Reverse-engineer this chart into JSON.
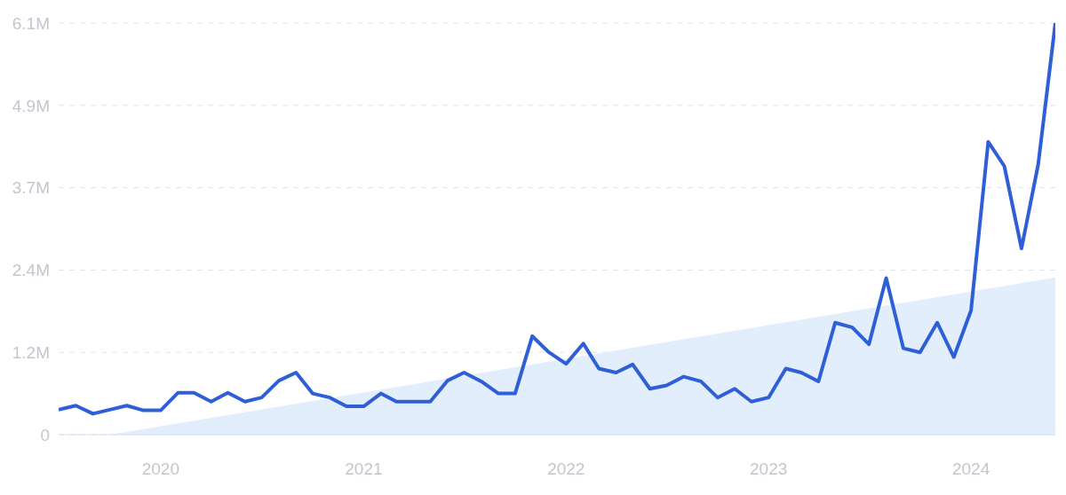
{
  "chart_data": {
    "type": "line",
    "xlim": [
      "2019-07",
      "2024-06"
    ],
    "xticks": [
      "2020",
      "2021",
      "2022",
      "2023",
      "2024"
    ],
    "ylim": [
      0,
      6.1
    ],
    "yticks": [
      0,
      {
        "value": 1.22,
        "label": "1.2M"
      },
      {
        "value": 2.44,
        "label": "2.4M"
      },
      {
        "value": 3.66,
        "label": "3.7M"
      },
      {
        "value": 4.88,
        "label": "4.9M"
      },
      {
        "value": 6.1,
        "label": "6.1M"
      }
    ],
    "grid": "y",
    "series": [
      {
        "type": "area",
        "color": "#e3eefc",
        "x": [
          "2019-10",
          "2024-06"
        ],
        "values": [
          0,
          2.33
        ]
      },
      {
        "color": "#2f5fd6",
        "x": [
          "2019-07",
          "2019-08",
          "2019-09",
          "2019-10",
          "2019-11",
          "2019-12",
          "2020-01",
          "2020-02",
          "2020-03",
          "2020-04",
          "2020-05",
          "2020-06",
          "2020-07",
          "2020-08",
          "2020-09",
          "2020-10",
          "2020-11",
          "2020-12",
          "2021-01",
          "2021-02",
          "2021-03",
          "2021-04",
          "2021-05",
          "2021-06",
          "2021-07",
          "2021-08",
          "2021-09",
          "2021-10",
          "2021-11",
          "2021-12",
          "2022-01",
          "2022-02",
          "2022-03",
          "2022-04",
          "2022-05",
          "2022-06",
          "2022-07",
          "2022-08",
          "2022-09",
          "2022-10",
          "2022-11",
          "2022-12",
          "2023-01",
          "2023-02",
          "2023-03",
          "2023-04",
          "2023-05",
          "2023-06",
          "2023-07",
          "2023-08",
          "2023-09",
          "2023-10",
          "2023-11",
          "2023-12",
          "2024-01",
          "2024-02",
          "2024-03",
          "2024-04",
          "2024-05",
          "2024-06"
        ],
        "values": [
          0.37,
          0.43,
          0.31,
          0.37,
          0.43,
          0.36,
          0.36,
          0.62,
          0.62,
          0.49,
          0.62,
          0.49,
          0.55,
          0.8,
          0.92,
          0.61,
          0.55,
          0.42,
          0.42,
          0.61,
          0.49,
          0.49,
          0.49,
          0.8,
          0.92,
          0.79,
          0.61,
          0.61,
          1.46,
          1.22,
          1.05,
          1.35,
          0.98,
          0.92,
          1.04,
          0.68,
          0.73,
          0.86,
          0.79,
          0.55,
          0.68,
          0.49,
          0.55,
          0.98,
          0.92,
          0.79,
          1.66,
          1.59,
          1.34,
          2.32,
          1.28,
          1.22,
          1.66,
          1.15,
          1.84,
          4.34,
          3.98,
          2.76,
          4.0,
          6.1
        ]
      }
    ]
  }
}
